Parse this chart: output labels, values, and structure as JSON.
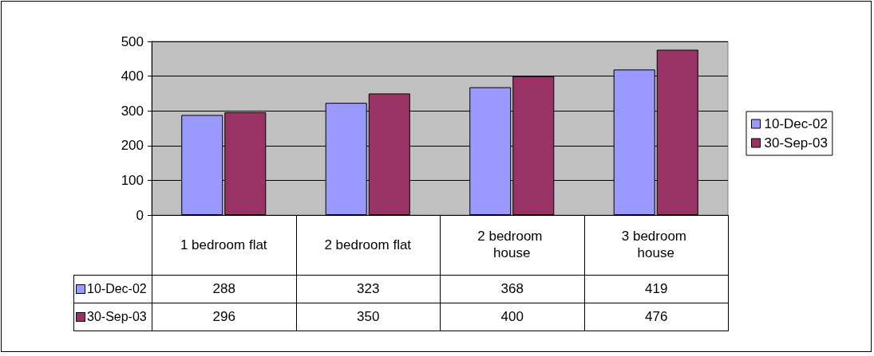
{
  "chart_data": {
    "type": "bar",
    "categories": [
      "1 bedroom flat",
      "2 bedroom flat",
      "2 bedroom house",
      "3 bedroom house"
    ],
    "series": [
      {
        "name": "10-Dec-02",
        "color": "#9999ff",
        "values": [
          288,
          323,
          368,
          419
        ]
      },
      {
        "name": "30-Sep-03",
        "color": "#993366",
        "values": [
          296,
          350,
          400,
          476
        ]
      }
    ],
    "ylim": [
      0,
      500
    ],
    "yticks": [
      0,
      100,
      200,
      300,
      400,
      500
    ],
    "grid": "y",
    "legend": "right",
    "data_labels": true
  }
}
